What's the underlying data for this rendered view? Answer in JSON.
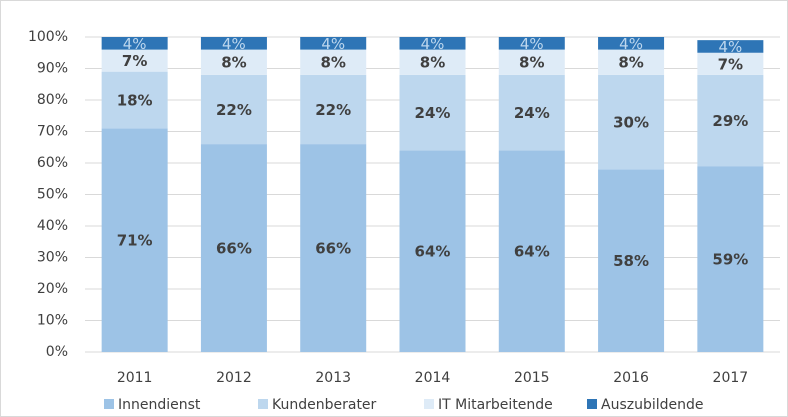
{
  "chart_data": {
    "type": "stacked_bar",
    "categories": [
      "2011",
      "2012",
      "2013",
      "2014",
      "2015",
      "2016",
      "2017"
    ],
    "series": [
      {
        "name": "Innendienst",
        "color": "#9dc3e6",
        "values": [
          71,
          66,
          66,
          64,
          64,
          58,
          59
        ],
        "value_labels": [
          "71%",
          "66%",
          "66%",
          "64%",
          "64%",
          "58%",
          "59%"
        ]
      },
      {
        "name": "Kundenberater",
        "color": "#bdd7ee",
        "values": [
          18,
          22,
          22,
          24,
          24,
          30,
          29
        ],
        "value_labels": [
          "18%",
          "22%",
          "22%",
          "24%",
          "24%",
          "30%",
          "29%"
        ]
      },
      {
        "name": "IT Mitarbeitende",
        "color": "#deebf7",
        "values": [
          7,
          8,
          8,
          8,
          8,
          8,
          7
        ],
        "value_labels": [
          "7%",
          "8%",
          "8%",
          "8%",
          "8%",
          "8%",
          "7%"
        ]
      },
      {
        "name": "Auszubildende",
        "color": "#2e75b6",
        "values": [
          4,
          4,
          4,
          4,
          4,
          4,
          4
        ],
        "value_labels": [
          "4%",
          "4%",
          "4%",
          "4%",
          "4%",
          "4%",
          "4%"
        ]
      }
    ],
    "ylim": [
      0,
      100
    ],
    "yticks": [
      {
        "value": 0,
        "label": "0%"
      },
      {
        "value": 10,
        "label": "10%"
      },
      {
        "value": 20,
        "label": "20%"
      },
      {
        "value": 30,
        "label": "30%"
      },
      {
        "value": 40,
        "label": "40%"
      },
      {
        "value": 50,
        "label": "50%"
      },
      {
        "value": 60,
        "label": "60%"
      },
      {
        "value": 70,
        "label": "70%"
      },
      {
        "value": 80,
        "label": "80%"
      },
      {
        "value": 90,
        "label": "90%"
      },
      {
        "value": 100,
        "label": "100%"
      }
    ],
    "grid": true,
    "legend": "bottom"
  }
}
